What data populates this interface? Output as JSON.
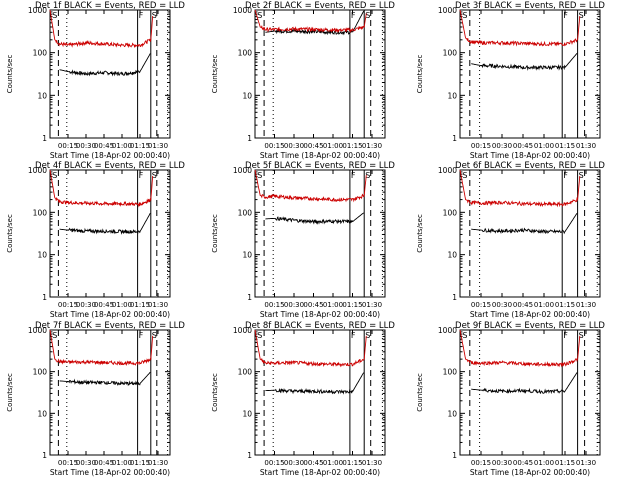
{
  "figure": {
    "panel_titles": [
      "Det 1f BLACK = Events, RED = LLD",
      "Det 2f BLACK = Events, RED = LLD",
      "Det 3f BLACK = Events, RED = LLD",
      "Det 4f BLACK = Events, RED = LLD",
      "Det 5f BLACK = Events, RED = LLD",
      "Det 6f BLACK = Events, RED = LLD",
      "Det 7f BLACK = Events, RED = LLD",
      "Det 8f BLACK = Events, RED = LLD",
      "Det 9f BLACK = Events, RED = LLD"
    ],
    "ylabel": "Counts/sec",
    "xlabel": "Start Time (18-Apr-02 00:00:40)",
    "x_ticks": [
      "00:15",
      "00:30",
      "00:45",
      "01:00",
      "01:15",
      "01:30"
    ],
    "y_ticks": [
      "1",
      "10",
      "100",
      "1000"
    ],
    "markers": [
      "S",
      "F",
      "S"
    ],
    "colors": {
      "events": "#000000",
      "lld": "#cc0000"
    }
  },
  "chart_data": [
    {
      "type": "line",
      "title": "Det 1f BLACK = Events, RED = LLD",
      "xlabel": "Start Time (18-Apr-02 00:00:40)",
      "ylabel": "Counts/sec",
      "yscale": "log",
      "ylim": [
        1,
        1000
      ],
      "xlim_minutes": [
        0,
        100
      ],
      "series": [
        {
          "name": "Events",
          "color": "black",
          "x_min": [
            8,
            15,
            30,
            45,
            60,
            75,
            84
          ],
          "y": [
            40,
            36,
            32,
            34,
            32,
            36,
            100
          ]
        },
        {
          "name": "LLD",
          "color": "red",
          "x_min": [
            0,
            4,
            8,
            15,
            30,
            45,
            60,
            75,
            84,
            86
          ],
          "y": [
            1000,
            200,
            160,
            150,
            170,
            160,
            150,
            150,
            200,
            1000
          ]
        }
      ],
      "markers": [
        {
          "label": "S",
          "x_min": 1
        },
        {
          "label": "F",
          "x_min": 73
        },
        {
          "label": "S",
          "x_min": 84
        }
      ]
    },
    {
      "type": "line",
      "title": "Det 2f BLACK = Events, RED = LLD",
      "xlabel": "Start Time (18-Apr-02 00:00:40)",
      "ylabel": "Counts/sec",
      "yscale": "log",
      "ylim": [
        1,
        1000
      ],
      "xlim_minutes": [
        0,
        100
      ],
      "series": [
        {
          "name": "Events",
          "color": "black",
          "x_min": [
            8,
            15,
            30,
            45,
            60,
            75,
            84
          ],
          "y": [
            300,
            320,
            320,
            310,
            300,
            300,
            1000
          ]
        },
        {
          "name": "LLD",
          "color": "red",
          "x_min": [
            0,
            4,
            8,
            15,
            30,
            45,
            60,
            75,
            84,
            86
          ],
          "y": [
            1000,
            400,
            350,
            350,
            360,
            350,
            340,
            340,
            400,
            1000
          ]
        }
      ],
      "markers": [
        {
          "label": "S",
          "x_min": 1
        },
        {
          "label": "F",
          "x_min": 73
        },
        {
          "label": "S",
          "x_min": 84
        }
      ]
    },
    {
      "type": "line",
      "title": "Det 3f BLACK = Events, RED = LLD",
      "xlabel": "Start Time (18-Apr-02 00:00:40)",
      "ylabel": "Counts/sec",
      "yscale": "log",
      "ylim": [
        1,
        1000
      ],
      "xlim_minutes": [
        0,
        100
      ],
      "series": [
        {
          "name": "Events",
          "color": "black",
          "x_min": [
            8,
            15,
            30,
            45,
            60,
            75,
            84
          ],
          "y": [
            55,
            50,
            48,
            45,
            45,
            45,
            100
          ]
        },
        {
          "name": "LLD",
          "color": "red",
          "x_min": [
            0,
            4,
            8,
            15,
            30,
            45,
            60,
            75,
            84,
            86
          ],
          "y": [
            1000,
            220,
            180,
            170,
            170,
            165,
            160,
            160,
            200,
            1000
          ]
        }
      ],
      "markers": [
        {
          "label": "S",
          "x_min": 1
        },
        {
          "label": "F",
          "x_min": 73
        },
        {
          "label": "S",
          "x_min": 84
        }
      ]
    },
    {
      "type": "line",
      "title": "Det 4f BLACK = Events, RED = LLD",
      "xlabel": "Start Time (18-Apr-02 00:00:40)",
      "ylabel": "Counts/sec",
      "yscale": "log",
      "ylim": [
        1,
        1000
      ],
      "xlim_minutes": [
        0,
        100
      ],
      "series": [
        {
          "name": "Events",
          "color": "black",
          "x_min": [
            8,
            15,
            30,
            45,
            60,
            75,
            84
          ],
          "y": [
            40,
            38,
            36,
            36,
            35,
            35,
            100
          ]
        },
        {
          "name": "LLD",
          "color": "red",
          "x_min": [
            0,
            4,
            8,
            15,
            30,
            45,
            60,
            75,
            84,
            86
          ],
          "y": [
            1000,
            220,
            180,
            170,
            165,
            160,
            160,
            155,
            200,
            1000
          ]
        }
      ],
      "markers": [
        {
          "label": "S",
          "x_min": 1
        },
        {
          "label": "F",
          "x_min": 73
        },
        {
          "label": "S",
          "x_min": 84
        }
      ]
    },
    {
      "type": "line",
      "title": "Det 5f BLACK = Events, RED = LLD",
      "xlabel": "Start Time (18-Apr-02 00:00:40)",
      "ylabel": "Counts/sec",
      "yscale": "log",
      "ylim": [
        1,
        1000
      ],
      "xlim_minutes": [
        0,
        100
      ],
      "series": [
        {
          "name": "Events",
          "color": "black",
          "x_min": [
            8,
            15,
            30,
            45,
            60,
            75,
            84
          ],
          "y": [
            70,
            72,
            65,
            60,
            62,
            60,
            100
          ]
        },
        {
          "name": "LLD",
          "color": "red",
          "x_min": [
            0,
            4,
            8,
            15,
            30,
            45,
            60,
            75,
            84,
            86
          ],
          "y": [
            1000,
            250,
            230,
            240,
            220,
            210,
            200,
            200,
            250,
            1000
          ]
        }
      ],
      "markers": [
        {
          "label": "S",
          "x_min": 1
        },
        {
          "label": "F",
          "x_min": 73
        },
        {
          "label": "S",
          "x_min": 84
        }
      ]
    },
    {
      "type": "line",
      "title": "Det 6f BLACK = Events, RED = LLD",
      "xlabel": "Start Time (18-Apr-02 00:00:40)",
      "ylabel": "Counts/sec",
      "yscale": "log",
      "ylim": [
        1,
        1000
      ],
      "xlim_minutes": [
        0,
        100
      ],
      "series": [
        {
          "name": "Events",
          "color": "black",
          "x_min": [
            8,
            15,
            30,
            45,
            60,
            75,
            84
          ],
          "y": [
            40,
            38,
            36,
            38,
            35,
            35,
            100
          ]
        },
        {
          "name": "LLD",
          "color": "red",
          "x_min": [
            0,
            4,
            8,
            15,
            30,
            45,
            60,
            75,
            84,
            86
          ],
          "y": [
            1000,
            200,
            170,
            165,
            170,
            160,
            155,
            155,
            200,
            1000
          ]
        }
      ],
      "markers": [
        {
          "label": "S",
          "x_min": 1
        },
        {
          "label": "F",
          "x_min": 73
        },
        {
          "label": "S",
          "x_min": 84
        }
      ]
    },
    {
      "type": "line",
      "title": "Det 7f BLACK = Events, RED = LLD",
      "xlabel": "Start Time (18-Apr-02 00:00:40)",
      "ylabel": "Counts/sec",
      "yscale": "log",
      "ylim": [
        1,
        1000
      ],
      "xlim_minutes": [
        0,
        100
      ],
      "series": [
        {
          "name": "Events",
          "color": "black",
          "x_min": [
            8,
            15,
            30,
            45,
            60,
            75,
            84
          ],
          "y": [
            60,
            58,
            55,
            55,
            52,
            52,
            100
          ]
        },
        {
          "name": "LLD",
          "color": "red",
          "x_min": [
            0,
            4,
            8,
            15,
            30,
            45,
            60,
            75,
            84,
            86
          ],
          "y": [
            1000,
            200,
            175,
            170,
            170,
            165,
            160,
            160,
            200,
            1000
          ]
        }
      ],
      "markers": [
        {
          "label": "S",
          "x_min": 1
        },
        {
          "label": "F",
          "x_min": 73
        },
        {
          "label": "S",
          "x_min": 84
        }
      ]
    },
    {
      "type": "line",
      "title": "Det 8f BLACK = Events, RED = LLD",
      "xlabel": "Start Time (18-Apr-02 00:00:40)",
      "ylabel": "Counts/sec",
      "yscale": "log",
      "ylim": [
        1,
        1000
      ],
      "xlim_minutes": [
        0,
        100
      ],
      "series": [
        {
          "name": "Events",
          "color": "black",
          "x_min": [
            8,
            15,
            30,
            45,
            60,
            75,
            84
          ],
          "y": [
            35,
            36,
            34,
            34,
            33,
            33,
            100
          ]
        },
        {
          "name": "LLD",
          "color": "red",
          "x_min": [
            0,
            4,
            8,
            15,
            30,
            45,
            60,
            75,
            84,
            86
          ],
          "y": [
            1000,
            200,
            160,
            160,
            165,
            155,
            150,
            150,
            200,
            1000
          ]
        }
      ],
      "markers": [
        {
          "label": "S",
          "x_min": 1
        },
        {
          "label": "F",
          "x_min": 73
        },
        {
          "label": "S",
          "x_min": 84
        }
      ]
    },
    {
      "type": "line",
      "title": "Det 9f BLACK = Events, RED = LLD",
      "xlabel": "Start Time (18-Apr-02 00:00:40)",
      "ylabel": "Counts/sec",
      "yscale": "log",
      "ylim": [
        1,
        1000
      ],
      "xlim_minutes": [
        0,
        100
      ],
      "series": [
        {
          "name": "Events",
          "color": "black",
          "x_min": [
            8,
            15,
            30,
            45,
            60,
            75,
            84
          ],
          "y": [
            38,
            36,
            34,
            35,
            33,
            34,
            100
          ]
        },
        {
          "name": "LLD",
          "color": "red",
          "x_min": [
            0,
            4,
            8,
            15,
            30,
            45,
            60,
            75,
            84,
            86
          ],
          "y": [
            1000,
            200,
            165,
            160,
            165,
            155,
            150,
            150,
            200,
            1000
          ]
        }
      ],
      "markers": [
        {
          "label": "S",
          "x_min": 1
        },
        {
          "label": "F",
          "x_min": 73
        },
        {
          "label": "S",
          "x_min": 84
        }
      ]
    }
  ]
}
